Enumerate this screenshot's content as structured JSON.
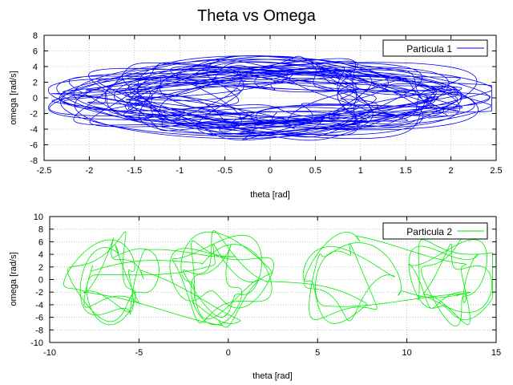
{
  "chart_data": [
    {
      "type": "line",
      "title": "Theta vs Omega",
      "xlabel": "theta  [rad]",
      "ylabel": "omega  [rad/s]",
      "xlim": [
        -2.5,
        2.5
      ],
      "ylim": [
        -8,
        8
      ],
      "xticks": [
        -2.5,
        -2,
        -1.5,
        -1,
        -0.5,
        0,
        0.5,
        1,
        1.5,
        2,
        2.5
      ],
      "yticks": [
        -8,
        -6,
        -4,
        -2,
        0,
        2,
        4,
        6,
        8
      ],
      "grid": true,
      "legend_position": "top-right",
      "series": [
        {
          "name": "Particula 1",
          "color": "#0000ff"
        }
      ]
    },
    {
      "type": "line",
      "xlabel": "theta  [rad]",
      "ylabel": "omega  [rad/s]",
      "xlim": [
        -10,
        15
      ],
      "ylim": [
        -10,
        10
      ],
      "xticks": [
        -10,
        -5,
        0,
        5,
        10,
        15
      ],
      "yticks": [
        -10,
        -8,
        -6,
        -4,
        -2,
        0,
        2,
        4,
        6,
        8,
        10
      ],
      "grid": true,
      "legend_position": "top-right",
      "series": [
        {
          "name": "Particula 2",
          "color": "#00ee00"
        }
      ]
    }
  ]
}
